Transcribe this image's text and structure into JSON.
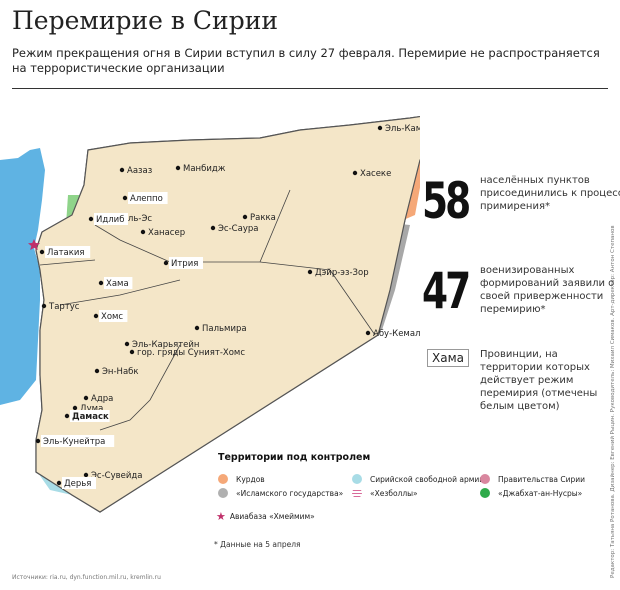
{
  "header": {
    "title": "Перемирие в Сирии",
    "subtitle": "Режим прекращения огня в Сирии вступил в силу 27 февраля. Перемирие не распространяется на террористические организации"
  },
  "stats": [
    {
      "number": "58",
      "text": "населённых пунктов присоединились к процессу примирения*"
    },
    {
      "number": "47",
      "text": "военизированных формирований заявили о своей приверженности перемирию*"
    }
  ],
  "province_note": {
    "sample": "Хама",
    "text": "Провинции, на территории которых действует режим перемирия (отмечены белым цветом)"
  },
  "legend": {
    "title": "Территории под контролем",
    "items": [
      {
        "label": "Курдов",
        "color": "#f5a878"
      },
      {
        "label": "«Исламского государства»",
        "color": "#b0b0b0"
      },
      {
        "label": "Сирийской свободной армии",
        "color": "#a8dce6"
      },
      {
        "label": "«Хезболлы»",
        "color": "#d86a9a",
        "pattern": "hatched"
      },
      {
        "label": "Правительства Сирии",
        "color": "#d9879f"
      },
      {
        "label": "«Джабхат-ан-Нусры»",
        "color": "#2eaa4a"
      }
    ],
    "airbase": {
      "label": "Авиабаза «Хмеймим»",
      "color": "#c0306a",
      "icon": "star-icon"
    }
  },
  "cities": [
    {
      "name": "Эль-Камышлы",
      "province": false
    },
    {
      "name": "Хасеке",
      "province": false
    },
    {
      "name": "Аазаз",
      "province": false
    },
    {
      "name": "Манбидж",
      "province": false
    },
    {
      "name": "Алеппо",
      "province": true
    },
    {
      "name": "Эль-Эс",
      "province": false
    },
    {
      "name": "Ханасер",
      "province": false
    },
    {
      "name": "Идлиб",
      "province": true
    },
    {
      "name": "Ракка",
      "province": false
    },
    {
      "name": "Эс-Саура",
      "province": false
    },
    {
      "name": "Латакия",
      "province": true
    },
    {
      "name": "Итрия",
      "province": true
    },
    {
      "name": "Дэйр-эз-Зор",
      "province": false
    },
    {
      "name": "Хама",
      "province": true
    },
    {
      "name": "Тартус",
      "province": false
    },
    {
      "name": "Хомс",
      "province": true
    },
    {
      "name": "Пальмира",
      "province": false
    },
    {
      "name": "Эль-Карьятейн",
      "province": false
    },
    {
      "name": "гор. гряды Суният-Хомс",
      "province": false
    },
    {
      "name": "Абу-Кемаль",
      "province": false
    },
    {
      "name": "Эн-Набк",
      "province": false
    },
    {
      "name": "Адра",
      "province": false
    },
    {
      "name": "Дума",
      "province": false
    },
    {
      "name": "Дамаск",
      "province": true
    },
    {
      "name": "Эль-Кунейтра",
      "province": true
    },
    {
      "name": "Эс-Сувейда",
      "province": false
    },
    {
      "name": "Дерья",
      "province": true
    }
  ],
  "colors": {
    "sea": "#5fb3e3",
    "desert": "#f4e6c8",
    "kurds": "#f5a878",
    "isis": "#a8a8a8",
    "government": "#d9709a",
    "fsa": "#a8dce6",
    "nusra": "#8fd48a",
    "border": "#333333"
  },
  "footnote": "Данные на 5 апреля",
  "sources": "Источники: ria.ru, dyn.function.mil.ru, kremlin.ru",
  "credits": "Редактор: Татьяна Ротанова. Дизайнер: Евгений Рыцин. Руководитель: Михаил Симаков. Арт-директор: Антон Степанов"
}
